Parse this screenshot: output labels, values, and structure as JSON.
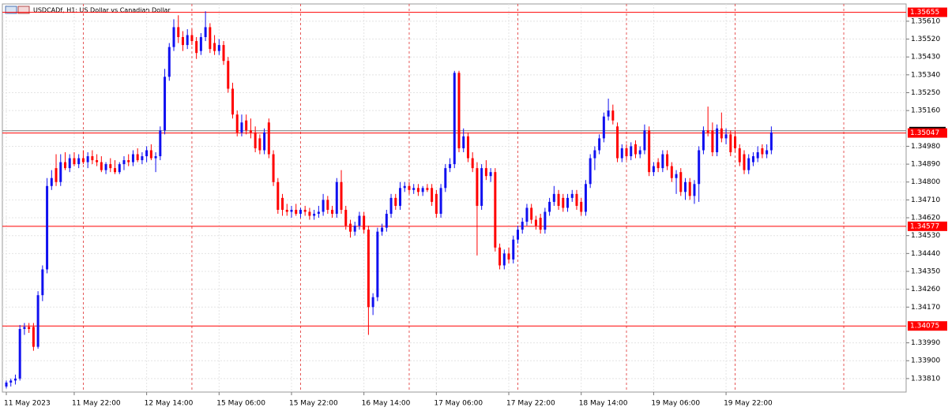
{
  "chart_data": {
    "type": "candlestick",
    "title": "USDCADf, H1:  US Dollar vs Canadian Dollar",
    "bull_color": "#1010f0",
    "bear_color": "#ff0000",
    "grid": true,
    "ylim": [
      1.33742,
      1.35697
    ],
    "yticks": [
      {
        "value": 1.3561,
        "label": "1.35610"
      },
      {
        "value": 1.3552,
        "label": "1.35520"
      },
      {
        "value": 1.3543,
        "label": "1.35430"
      },
      {
        "value": 1.3534,
        "label": "1.35340"
      },
      {
        "value": 1.3525,
        "label": "1.35250"
      },
      {
        "value": 1.3516,
        "label": "1.35160"
      },
      {
        "value": 1.3498,
        "label": "1.34980"
      },
      {
        "value": 1.3489,
        "label": "1.34890"
      },
      {
        "value": 1.348,
        "label": "1.34800"
      },
      {
        "value": 1.3471,
        "label": "1.34710"
      },
      {
        "value": 1.3462,
        "label": "1.34620"
      },
      {
        "value": 1.3453,
        "label": "1.34530"
      },
      {
        "value": 1.3444,
        "label": "1.34440"
      },
      {
        "value": 1.3435,
        "label": "1.34350"
      },
      {
        "value": 1.3426,
        "label": "1.34260"
      },
      {
        "value": 1.3417,
        "label": "1.34170"
      },
      {
        "value": 1.3399,
        "label": "1.33990"
      },
      {
        "value": 1.339,
        "label": "1.33900"
      },
      {
        "value": 1.3381,
        "label": "1.33810"
      }
    ],
    "price_lines": [
      {
        "value": 1.35655,
        "label": "1.35655"
      },
      {
        "value": 1.35047,
        "label": "1.35047"
      },
      {
        "value": 1.34577,
        "label": "1.34577"
      },
      {
        "value": 1.34075,
        "label": "1.34075"
      }
    ],
    "price_line_color": "#ff0000",
    "current_price": 1.35058,
    "categories": [
      "11 May 2023",
      null,
      null,
      null,
      null,
      null,
      null,
      null,
      null,
      null,
      null,
      null,
      null,
      null,
      null,
      "11 May 22:00",
      null,
      null,
      null,
      null,
      null,
      null,
      null,
      null,
      null,
      null,
      null,
      null,
      null,
      null,
      null,
      "12 May 14:00",
      null,
      null,
      null,
      null,
      null,
      null,
      null,
      null,
      null,
      null,
      null,
      null,
      null,
      null,
      null,
      "15 May 06:00",
      null,
      null,
      null,
      null,
      null,
      null,
      null,
      null,
      null,
      null,
      null,
      null,
      null,
      null,
      null,
      "15 May 22:00",
      null,
      null,
      null,
      null,
      null,
      null,
      null,
      null,
      null,
      null,
      null,
      null,
      null,
      null,
      null,
      "16 May 14:00",
      null,
      null,
      null,
      null,
      null,
      null,
      null,
      null,
      null,
      null,
      null,
      null,
      null,
      null,
      null,
      "17 May 06:00",
      null,
      null,
      null,
      null,
      null,
      null,
      null,
      null,
      null,
      null,
      null,
      null,
      null,
      null,
      null,
      "17 May 22:00",
      null,
      null,
      null,
      null,
      null,
      null,
      null,
      null,
      null,
      null,
      null,
      null,
      null,
      null,
      null,
      "18 May 14:00",
      null,
      null,
      null,
      null,
      null,
      null,
      null,
      null,
      null,
      null,
      null,
      null,
      null,
      null,
      null,
      "19 May 06:00",
      null,
      null,
      null,
      null,
      null,
      null,
      null,
      null,
      null,
      null,
      null,
      null,
      null,
      null,
      null,
      "19 May 22:00",
      null,
      null,
      null,
      null,
      null,
      null,
      null,
      null,
      null,
      null
    ],
    "ohlc": [
      [
        1.3377,
        1.338,
        1.3376,
        1.3379
      ],
      [
        1.3379,
        1.3381,
        1.3377,
        1.338
      ],
      [
        1.338,
        1.3383,
        1.3378,
        1.3381
      ],
      [
        1.3381,
        1.3408,
        1.338,
        1.3406
      ],
      [
        1.3406,
        1.3409,
        1.3403,
        1.3407
      ],
      [
        1.3407,
        1.3409,
        1.3404,
        1.3406
      ],
      [
        1.3407,
        1.3409,
        1.3395,
        1.3397
      ],
      [
        1.3397,
        1.3425,
        1.3396,
        1.3423
      ],
      [
        1.3423,
        1.3438,
        1.342,
        1.3436
      ],
      [
        1.3436,
        1.3482,
        1.3434,
        1.3478
      ],
      [
        1.3478,
        1.3486,
        1.3476,
        1.3482
      ],
      [
        1.3487,
        1.3494,
        1.3478,
        1.348
      ],
      [
        1.348,
        1.3494,
        1.3478,
        1.349
      ],
      [
        1.349,
        1.3495,
        1.3486,
        1.3487
      ],
      [
        1.3487,
        1.3494,
        1.3485,
        1.3492
      ],
      [
        1.3492,
        1.3495,
        1.3488,
        1.3489
      ],
      [
        1.3489,
        1.3494,
        1.3487,
        1.3492
      ],
      [
        1.3492,
        1.3496,
        1.3489,
        1.349
      ],
      [
        1.349,
        1.3495,
        1.3487,
        1.3493
      ],
      [
        1.3493,
        1.3496,
        1.3489,
        1.3491
      ],
      [
        1.3491,
        1.3494,
        1.3488,
        1.349
      ],
      [
        1.349,
        1.3493,
        1.3485,
        1.3486
      ],
      [
        1.3486,
        1.349,
        1.3484,
        1.3489
      ],
      [
        1.3489,
        1.3492,
        1.3485,
        1.3487
      ],
      [
        1.3487,
        1.3491,
        1.3484,
        1.3485
      ],
      [
        1.3485,
        1.349,
        1.3484,
        1.3489
      ],
      [
        1.3489,
        1.3493,
        1.3486,
        1.3491
      ],
      [
        1.3491,
        1.3494,
        1.3488,
        1.349
      ],
      [
        1.349,
        1.3496,
        1.3488,
        1.3494
      ],
      [
        1.3494,
        1.3497,
        1.349,
        1.3491
      ],
      [
        1.3491,
        1.3495,
        1.3489,
        1.3493
      ],
      [
        1.3493,
        1.3498,
        1.349,
        1.3496
      ],
      [
        1.3496,
        1.3499,
        1.3491,
        1.3492
      ],
      [
        1.3492,
        1.3495,
        1.3485,
        1.3493
      ],
      [
        1.3493,
        1.3508,
        1.3491,
        1.3506
      ],
      [
        1.3506,
        1.3537,
        1.3504,
        1.3533
      ],
      [
        1.3533,
        1.355,
        1.3531,
        1.3548
      ],
      [
        1.3548,
        1.3562,
        1.3546,
        1.3558
      ],
      [
        1.3558,
        1.3564,
        1.355,
        1.3553
      ],
      [
        1.3553,
        1.3556,
        1.3546,
        1.3549
      ],
      [
        1.3549,
        1.3557,
        1.3547,
        1.3554
      ],
      [
        1.3554,
        1.3557,
        1.3549,
        1.3551
      ],
      [
        1.3551,
        1.3553,
        1.3542,
        1.3545
      ],
      [
        1.3546,
        1.3555,
        1.3544,
        1.3553
      ],
      [
        1.3553,
        1.3566,
        1.3551,
        1.3558
      ],
      [
        1.3558,
        1.356,
        1.3545,
        1.3547
      ],
      [
        1.355,
        1.3554,
        1.3544,
        1.3546
      ],
      [
        1.3546,
        1.3552,
        1.3544,
        1.3549
      ],
      [
        1.3549,
        1.3551,
        1.3539,
        1.3541
      ],
      [
        1.3541,
        1.3543,
        1.3525,
        1.3527
      ],
      [
        1.3527,
        1.353,
        1.3512,
        1.3514
      ],
      [
        1.3514,
        1.3516,
        1.3503,
        1.3505
      ],
      [
        1.3505,
        1.3514,
        1.3503,
        1.351
      ],
      [
        1.3511,
        1.3514,
        1.3504,
        1.3506
      ],
      [
        1.3506,
        1.3512,
        1.3502,
        1.3505
      ],
      [
        1.3505,
        1.3508,
        1.3495,
        1.3497
      ],
      [
        1.3502,
        1.3504,
        1.3494,
        1.3496
      ],
      [
        1.3496,
        1.3507,
        1.3494,
        1.3505
      ],
      [
        1.351,
        1.3512,
        1.3492,
        1.3494
      ],
      [
        1.3494,
        1.3496,
        1.3478,
        1.348
      ],
      [
        1.348,
        1.3482,
        1.3464,
        1.3466
      ],
      [
        1.3472,
        1.3474,
        1.3463,
        1.3466
      ],
      [
        1.3466,
        1.3469,
        1.3463,
        1.3465
      ],
      [
        1.3465,
        1.3468,
        1.3462,
        1.3466
      ],
      [
        1.3466,
        1.3469,
        1.3463,
        1.3464
      ],
      [
        1.3464,
        1.3467,
        1.3462,
        1.3466
      ],
      [
        1.3466,
        1.3468,
        1.3463,
        1.3465
      ],
      [
        1.3465,
        1.3467,
        1.3461,
        1.3463
      ],
      [
        1.3463,
        1.3466,
        1.3461,
        1.3464
      ],
      [
        1.3464,
        1.3468,
        1.3462,
        1.3465
      ],
      [
        1.3465,
        1.3474,
        1.3463,
        1.3471
      ],
      [
        1.3471,
        1.3473,
        1.3464,
        1.3466
      ],
      [
        1.3466,
        1.3468,
        1.3462,
        1.3464
      ],
      [
        1.3464,
        1.3482,
        1.3462,
        1.348
      ],
      [
        1.348,
        1.3486,
        1.3464,
        1.3466
      ],
      [
        1.3466,
        1.3468,
        1.3456,
        1.3458
      ],
      [
        1.3459,
        1.3461,
        1.3452,
        1.3455
      ],
      [
        1.3455,
        1.346,
        1.3453,
        1.3458
      ],
      [
        1.3458,
        1.3465,
        1.3456,
        1.3463
      ],
      [
        1.3463,
        1.3465,
        1.3454,
        1.3456
      ],
      [
        1.3456,
        1.3458,
        1.3403,
        1.3417
      ],
      [
        1.3417,
        1.3424,
        1.3413,
        1.3422
      ],
      [
        1.3422,
        1.3457,
        1.342,
        1.3455
      ],
      [
        1.3455,
        1.3459,
        1.3453,
        1.3457
      ],
      [
        1.3457,
        1.3466,
        1.3455,
        1.3464
      ],
      [
        1.3464,
        1.3474,
        1.3462,
        1.3472
      ],
      [
        1.3472,
        1.3474,
        1.3466,
        1.3468
      ],
      [
        1.3468,
        1.348,
        1.3466,
        1.3477
      ],
      [
        1.3477,
        1.348,
        1.3475,
        1.3478
      ],
      [
        1.3478,
        1.348,
        1.3474,
        1.3476
      ],
      [
        1.3476,
        1.3479,
        1.3474,
        1.3477
      ],
      [
        1.3477,
        1.3479,
        1.3473,
        1.3475
      ],
      [
        1.3475,
        1.3478,
        1.3473,
        1.3477
      ],
      [
        1.3477,
        1.3479,
        1.3475,
        1.3476
      ],
      [
        1.3477,
        1.3479,
        1.3468,
        1.347
      ],
      [
        1.3474,
        1.3476,
        1.3462,
        1.3464
      ],
      [
        1.3464,
        1.3479,
        1.3462,
        1.3477
      ],
      [
        1.3477,
        1.3489,
        1.3475,
        1.3487
      ],
      [
        1.3487,
        1.3492,
        1.3485,
        1.3489
      ],
      [
        1.3489,
        1.3536,
        1.3487,
        1.3535
      ],
      [
        1.3535,
        1.3536,
        1.3495,
        1.3497
      ],
      [
        1.3497,
        1.3507,
        1.3495,
        1.3503
      ],
      [
        1.3503,
        1.3505,
        1.349,
        1.3492
      ],
      [
        1.3492,
        1.3495,
        1.3485,
        1.3487
      ],
      [
        1.3487,
        1.349,
        1.3443,
        1.3468
      ],
      [
        1.3468,
        1.3489,
        1.3466,
        1.3487
      ],
      [
        1.3487,
        1.3491,
        1.3481,
        1.3483
      ],
      [
        1.3483,
        1.3487,
        1.348,
        1.3485
      ],
      [
        1.3485,
        1.3487,
        1.3445,
        1.3447
      ],
      [
        1.3447,
        1.3449,
        1.3436,
        1.3438
      ],
      [
        1.3438,
        1.3446,
        1.3436,
        1.3444
      ],
      [
        1.3444,
        1.3447,
        1.3439,
        1.3441
      ],
      [
        1.3441,
        1.3453,
        1.3439,
        1.3451
      ],
      [
        1.3451,
        1.3458,
        1.3449,
        1.3456
      ],
      [
        1.3456,
        1.3462,
        1.3454,
        1.346
      ],
      [
        1.346,
        1.3469,
        1.3458,
        1.3467
      ],
      [
        1.3467,
        1.3469,
        1.3459,
        1.3461
      ],
      [
        1.3461,
        1.3463,
        1.3456,
        1.3458
      ],
      [
        1.3462,
        1.3464,
        1.3454,
        1.3456
      ],
      [
        1.3456,
        1.3467,
        1.3454,
        1.3465
      ],
      [
        1.3465,
        1.3472,
        1.3463,
        1.347
      ],
      [
        1.347,
        1.3478,
        1.3468,
        1.3474
      ],
      [
        1.3474,
        1.3476,
        1.3466,
        1.3468
      ],
      [
        1.3472,
        1.3474,
        1.3465,
        1.3467
      ],
      [
        1.3467,
        1.3474,
        1.3465,
        1.3472
      ],
      [
        1.3472,
        1.3476,
        1.347,
        1.3474
      ],
      [
        1.3474,
        1.3476,
        1.3466,
        1.3468
      ],
      [
        1.347,
        1.3472,
        1.3463,
        1.3465
      ],
      [
        1.3465,
        1.3481,
        1.3463,
        1.3479
      ],
      [
        1.3479,
        1.3494,
        1.3477,
        1.3492
      ],
      [
        1.3492,
        1.3498,
        1.3486,
        1.3496
      ],
      [
        1.3496,
        1.3504,
        1.3494,
        1.3502
      ],
      [
        1.3502,
        1.3515,
        1.35,
        1.3513
      ],
      [
        1.3513,
        1.3522,
        1.3511,
        1.3516
      ],
      [
        1.3516,
        1.3519,
        1.3509,
        1.3511
      ],
      [
        1.3508,
        1.351,
        1.349,
        1.3492
      ],
      [
        1.3492,
        1.3499,
        1.349,
        1.3497
      ],
      [
        1.3497,
        1.3499,
        1.3491,
        1.3493
      ],
      [
        1.3493,
        1.35,
        1.3491,
        1.3498
      ],
      [
        1.3499,
        1.3501,
        1.3492,
        1.3494
      ],
      [
        1.3494,
        1.3498,
        1.3492,
        1.3496
      ],
      [
        1.3496,
        1.3509,
        1.3494,
        1.3506
      ],
      [
        1.3506,
        1.3508,
        1.3483,
        1.3485
      ],
      [
        1.3485,
        1.349,
        1.3483,
        1.3488
      ],
      [
        1.349,
        1.3492,
        1.3485,
        1.3487
      ],
      [
        1.3487,
        1.3496,
        1.3485,
        1.3494
      ],
      [
        1.3494,
        1.3496,
        1.3486,
        1.3488
      ],
      [
        1.3488,
        1.349,
        1.348,
        1.3482
      ],
      [
        1.3482,
        1.3486,
        1.3474,
        1.3484
      ],
      [
        1.3485,
        1.3487,
        1.3473,
        1.3475
      ],
      [
        1.3475,
        1.3482,
        1.3471,
        1.348
      ],
      [
        1.348,
        1.3482,
        1.3471,
        1.3473
      ],
      [
        1.3473,
        1.3481,
        1.3469,
        1.3479
      ],
      [
        1.3479,
        1.3498,
        1.347,
        1.3496
      ],
      [
        1.3496,
        1.3508,
        1.3494,
        1.3506
      ],
      [
        1.3506,
        1.3518,
        1.3503,
        1.3505
      ],
      [
        1.3506,
        1.351,
        1.3493,
        1.3495
      ],
      [
        1.3495,
        1.3509,
        1.3493,
        1.3507
      ],
      [
        1.3507,
        1.3515,
        1.35,
        1.3502
      ],
      [
        1.3502,
        1.3507,
        1.3499,
        1.3504
      ],
      [
        1.3504,
        1.3506,
        1.3493,
        1.3495
      ],
      [
        1.3503,
        1.3506,
        1.3495,
        1.3497
      ],
      [
        1.3497,
        1.3499,
        1.3488,
        1.349
      ],
      [
        1.3494,
        1.3496,
        1.3484,
        1.3486
      ],
      [
        1.3486,
        1.3494,
        1.3484,
        1.3492
      ],
      [
        1.349,
        1.3495,
        1.3488,
        1.3493
      ],
      [
        1.3492,
        1.3498,
        1.349,
        1.3495
      ],
      [
        1.3497,
        1.3499,
        1.3492,
        1.3494
      ],
      [
        1.3494,
        1.3499,
        1.3492,
        1.3496
      ],
      [
        1.3496,
        1.3508,
        1.3494,
        1.3505
      ]
    ]
  }
}
